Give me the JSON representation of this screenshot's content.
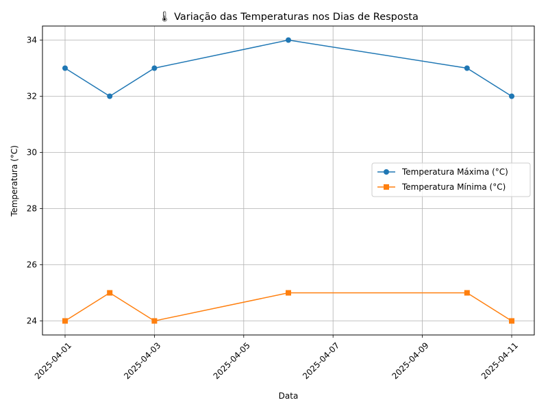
{
  "chart_data": {
    "type": "line",
    "title": "🌡 Variação das Temperaturas nos Dias de Resposta",
    "xlabel": "Data",
    "ylabel": "Temperatura (°C)",
    "x": [
      "2025-04-01",
      "2025-04-02",
      "2025-04-03",
      "2025-04-06",
      "2025-04-10",
      "2025-04-11"
    ],
    "x_ticks": [
      "2025-04-01",
      "2025-04-03",
      "2025-04-05",
      "2025-04-07",
      "2025-04-09",
      "2025-04-11"
    ],
    "y_ticks": [
      24,
      26,
      28,
      30,
      32,
      34
    ],
    "ylim": [
      23.5,
      34.5
    ],
    "xlim": [
      "2025-03-31",
      "2025-04-11"
    ],
    "grid": true,
    "legend_position": "center-right",
    "series": [
      {
        "name": "Temperatura Máxima (°C)",
        "values": [
          33,
          32,
          33,
          34,
          33,
          32
        ],
        "color": "#1f77b4",
        "marker": "circle"
      },
      {
        "name": "Temperatura Mínima (°C)",
        "values": [
          24,
          25,
          24,
          25,
          25,
          24
        ],
        "color": "#ff7f0e",
        "marker": "square"
      }
    ]
  }
}
